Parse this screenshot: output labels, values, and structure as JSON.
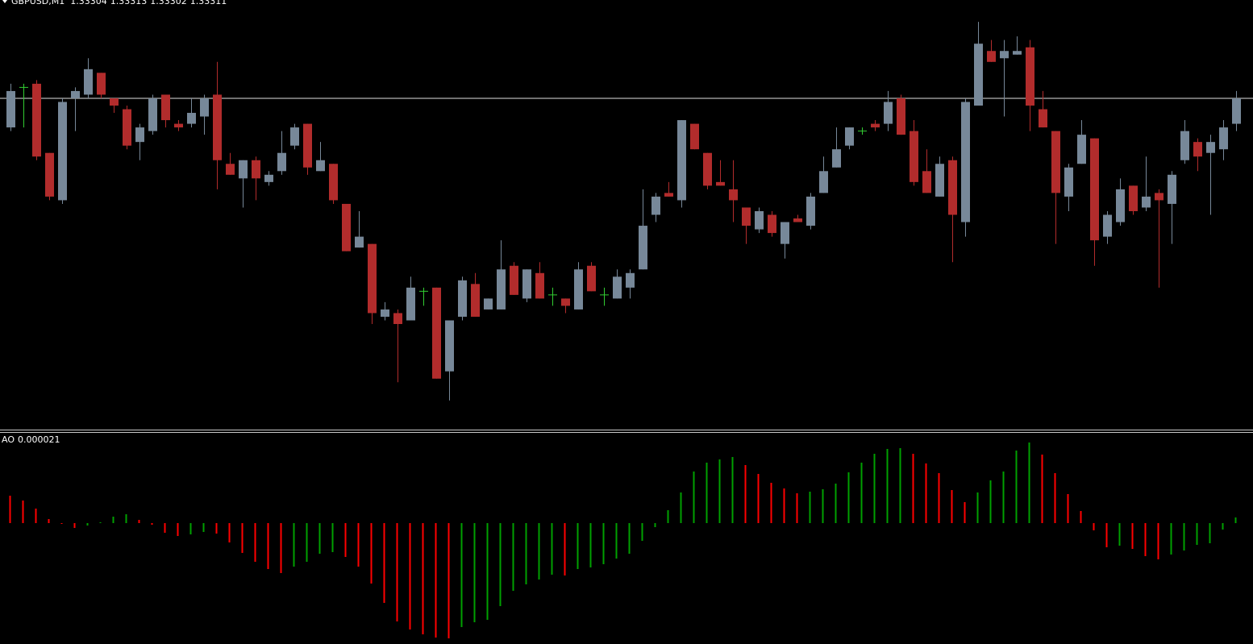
{
  "chart_data": [
    {
      "type": "candlestick",
      "title": "GBPUSD,M1",
      "open": [
        1.33303,
        1.33314,
        1.33315,
        1.33296,
        1.33283,
        1.33311,
        1.33312,
        1.33318,
        1.33311,
        1.33308,
        1.33299,
        1.33302,
        1.33312,
        1.33304,
        1.33304,
        1.33306,
        1.33312,
        1.33293,
        1.33289,
        1.33294,
        1.33288,
        1.33291,
        1.33298,
        1.33304,
        1.33291,
        1.33293,
        1.33282,
        1.3327,
        1.33271,
        1.33251,
        1.33252,
        1.3325,
        1.33258,
        1.33259,
        1.33236,
        1.33251,
        1.3326,
        1.33253,
        1.33253,
        1.33265,
        1.33256,
        1.33263,
        1.33257,
        1.33256,
        1.33253,
        1.33265,
        1.33257,
        1.33256,
        1.33259,
        1.33264,
        1.33279,
        1.33285,
        1.33283,
        1.33304,
        1.33296,
        1.33288,
        1.33286,
        1.33281,
        1.33275,
        1.33279,
        1.33271,
        1.33278,
        1.33276,
        1.33285,
        1.33292,
        1.33298,
        1.33302,
        1.33304,
        1.33304,
        1.33311,
        1.33302,
        1.33291,
        1.33284,
        1.33294,
        1.33277,
        1.33309,
        1.33324,
        1.33322,
        1.33323,
        1.33325,
        1.33308,
        1.33302,
        1.33284,
        1.33293,
        1.333,
        1.33273,
        1.33277,
        1.33287,
        1.33281,
        1.33285,
        1.33282,
        1.33294,
        1.33299,
        1.33296,
        1.33297,
        1.33304
      ],
      "high": [
        1.33315,
        1.33315,
        1.33316,
        1.33296,
        1.33311,
        1.33314,
        1.33322,
        1.33318,
        1.33311,
        1.33309,
        1.33304,
        1.33312,
        1.33312,
        1.33305,
        1.33311,
        1.33312,
        1.33321,
        1.33296,
        1.33294,
        1.33295,
        1.33291,
        1.33302,
        1.33304,
        1.33304,
        1.33299,
        1.33293,
        1.33282,
        1.3328,
        1.33271,
        1.33255,
        1.33253,
        1.33262,
        1.33259,
        1.33259,
        1.3325,
        1.33262,
        1.33263,
        1.33256,
        1.33272,
        1.33266,
        1.33264,
        1.33266,
        1.33259,
        1.33256,
        1.33266,
        1.33266,
        1.33259,
        1.33264,
        1.33264,
        1.33286,
        1.33285,
        1.33288,
        1.33305,
        1.33304,
        1.33296,
        1.33294,
        1.33294,
        1.33281,
        1.33281,
        1.3328,
        1.33277,
        1.33279,
        1.33285,
        1.33295,
        1.33303,
        1.33303,
        1.33303,
        1.33305,
        1.33313,
        1.33312,
        1.33305,
        1.33297,
        1.33295,
        1.33295,
        1.33311,
        1.33332,
        1.33327,
        1.33327,
        1.33328,
        1.33327,
        1.33313,
        1.33302,
        1.33293,
        1.33305,
        1.333,
        1.3328,
        1.33289,
        1.33287,
        1.33295,
        1.33286,
        1.33291,
        1.33305,
        1.333,
        1.33301,
        1.33305,
        1.33313
      ],
      "low": [
        1.33302,
        1.33303,
        1.33294,
        1.33283,
        1.33282,
        1.33302,
        1.33311,
        1.33311,
        1.33307,
        1.33297,
        1.33294,
        1.33301,
        1.33303,
        1.33302,
        1.33303,
        1.33301,
        1.33286,
        1.3329,
        1.33281,
        1.33283,
        1.33287,
        1.3329,
        1.33297,
        1.3329,
        1.33291,
        1.33282,
        1.33269,
        1.3327,
        1.33249,
        1.3325,
        1.33233,
        1.3325,
        1.33254,
        1.33234,
        1.33228,
        1.3325,
        1.33251,
        1.33253,
        1.33253,
        1.33257,
        1.33255,
        1.33256,
        1.33254,
        1.33252,
        1.33253,
        1.33258,
        1.33254,
        1.33256,
        1.33256,
        1.33264,
        1.33277,
        1.33284,
        1.33281,
        1.33297,
        1.33286,
        1.33287,
        1.33277,
        1.33271,
        1.33274,
        1.33273,
        1.33267,
        1.33277,
        1.33275,
        1.33285,
        1.33292,
        1.33297,
        1.33301,
        1.33302,
        1.33302,
        1.33301,
        1.33287,
        1.33285,
        1.33284,
        1.33266,
        1.33273,
        1.33309,
        1.33321,
        1.33306,
        1.33323,
        1.33302,
        1.33303,
        1.33271,
        1.3328,
        1.33293,
        1.33265,
        1.33271,
        1.33276,
        1.33279,
        1.3328,
        1.33259,
        1.33271,
        1.33293,
        1.33291,
        1.33279,
        1.33294,
        1.33302
      ],
      "close": [
        1.33313,
        1.33314,
        1.33295,
        1.33284,
        1.3331,
        1.33313,
        1.33319,
        1.33312,
        1.33309,
        1.33298,
        1.33303,
        1.33311,
        1.33305,
        1.33303,
        1.33307,
        1.33311,
        1.33294,
        1.3329,
        1.33294,
        1.33289,
        1.3329,
        1.33296,
        1.33303,
        1.33292,
        1.33294,
        1.33283,
        1.33269,
        1.33273,
        1.33252,
        1.33253,
        1.33249,
        1.33259,
        1.33258,
        1.33234,
        1.3325,
        1.33261,
        1.33251,
        1.33256,
        1.33264,
        1.33257,
        1.33264,
        1.33256,
        1.33257,
        1.33254,
        1.33264,
        1.33258,
        1.33257,
        1.33262,
        1.33263,
        1.33276,
        1.33284,
        1.33284,
        1.33305,
        1.33297,
        1.33287,
        1.33287,
        1.33283,
        1.33276,
        1.3328,
        1.33274,
        1.33277,
        1.33277,
        1.33284,
        1.33291,
        1.33297,
        1.33303,
        1.33302,
        1.33303,
        1.3331,
        1.33301,
        1.33288,
        1.33285,
        1.33293,
        1.33279,
        1.3331,
        1.33326,
        1.33321,
        1.33324,
        1.33324,
        1.33309,
        1.33303,
        1.33285,
        1.33292,
        1.33301,
        1.33272,
        1.33279,
        1.33286,
        1.3328,
        1.33284,
        1.33283,
        1.3329,
        1.33302,
        1.33295,
        1.33299,
        1.33303,
        1.33311
      ],
      "ylim": [
        1.3322,
        1.33338
      ],
      "up_color": "#778899",
      "down_color": "#b22c2c",
      "doji_color": "#32cd32"
    },
    {
      "type": "bar",
      "name": "AO",
      "values": [
        0.000102,
        8.4e-05,
        5.4e-05,
        1.5e-05,
        -3e-06,
        -1.8e-05,
        -9e-06,
        3e-06,
        2.4e-05,
        3.3e-05,
        1.2e-05,
        -6e-06,
        -3.6e-05,
        -4.8e-05,
        -4.2e-05,
        -3.3e-05,
        -3.9e-05,
        -7.2e-05,
        -0.000111,
        -0.000144,
        -0.000171,
        -0.000186,
        -0.000162,
        -0.000144,
        -0.000114,
        -0.000108,
        -0.000126,
        -0.000162,
        -0.000225,
        -0.000297,
        -0.000366,
        -0.000396,
        -0.000414,
        -0.000426,
        -0.000429,
        -0.000387,
        -0.000369,
        -0.00036,
        -0.000309,
        -0.000252,
        -0.000228,
        -0.00021,
        -0.000192,
        -0.000195,
        -0.000171,
        -0.000165,
        -0.000153,
        -0.000132,
        -0.000114,
        -6.6e-05,
        -1.5e-05,
        4.8e-05,
        0.000114,
        0.000192,
        0.000225,
        0.000237,
        0.000246,
        0.000216,
        0.000183,
        0.00015,
        0.000129,
        0.000111,
        0.000117,
        0.000126,
        0.000147,
        0.000189,
        0.000225,
        0.000258,
        0.000276,
        0.000279,
        0.000258,
        0.000222,
        0.000186,
        0.000123,
        7.8e-05,
        0.000114,
        0.000159,
        0.000192,
        0.00027,
        0.0003,
        0.000255,
        0.000186,
        0.000108,
        4.5e-05,
        -2.7e-05,
        -9e-05,
        -8.4e-05,
        -9.6e-05,
        -0.000123,
        -0.000135,
        -0.000117,
        -0.000102,
        -8.1e-05,
        -7.5e-05,
        -2.4e-05,
        2.1e-05
      ],
      "ylim": [
        -0.00045,
        0.000339
      ],
      "up_color": "#00a000",
      "down_color": "#ff0000"
    }
  ]
}
